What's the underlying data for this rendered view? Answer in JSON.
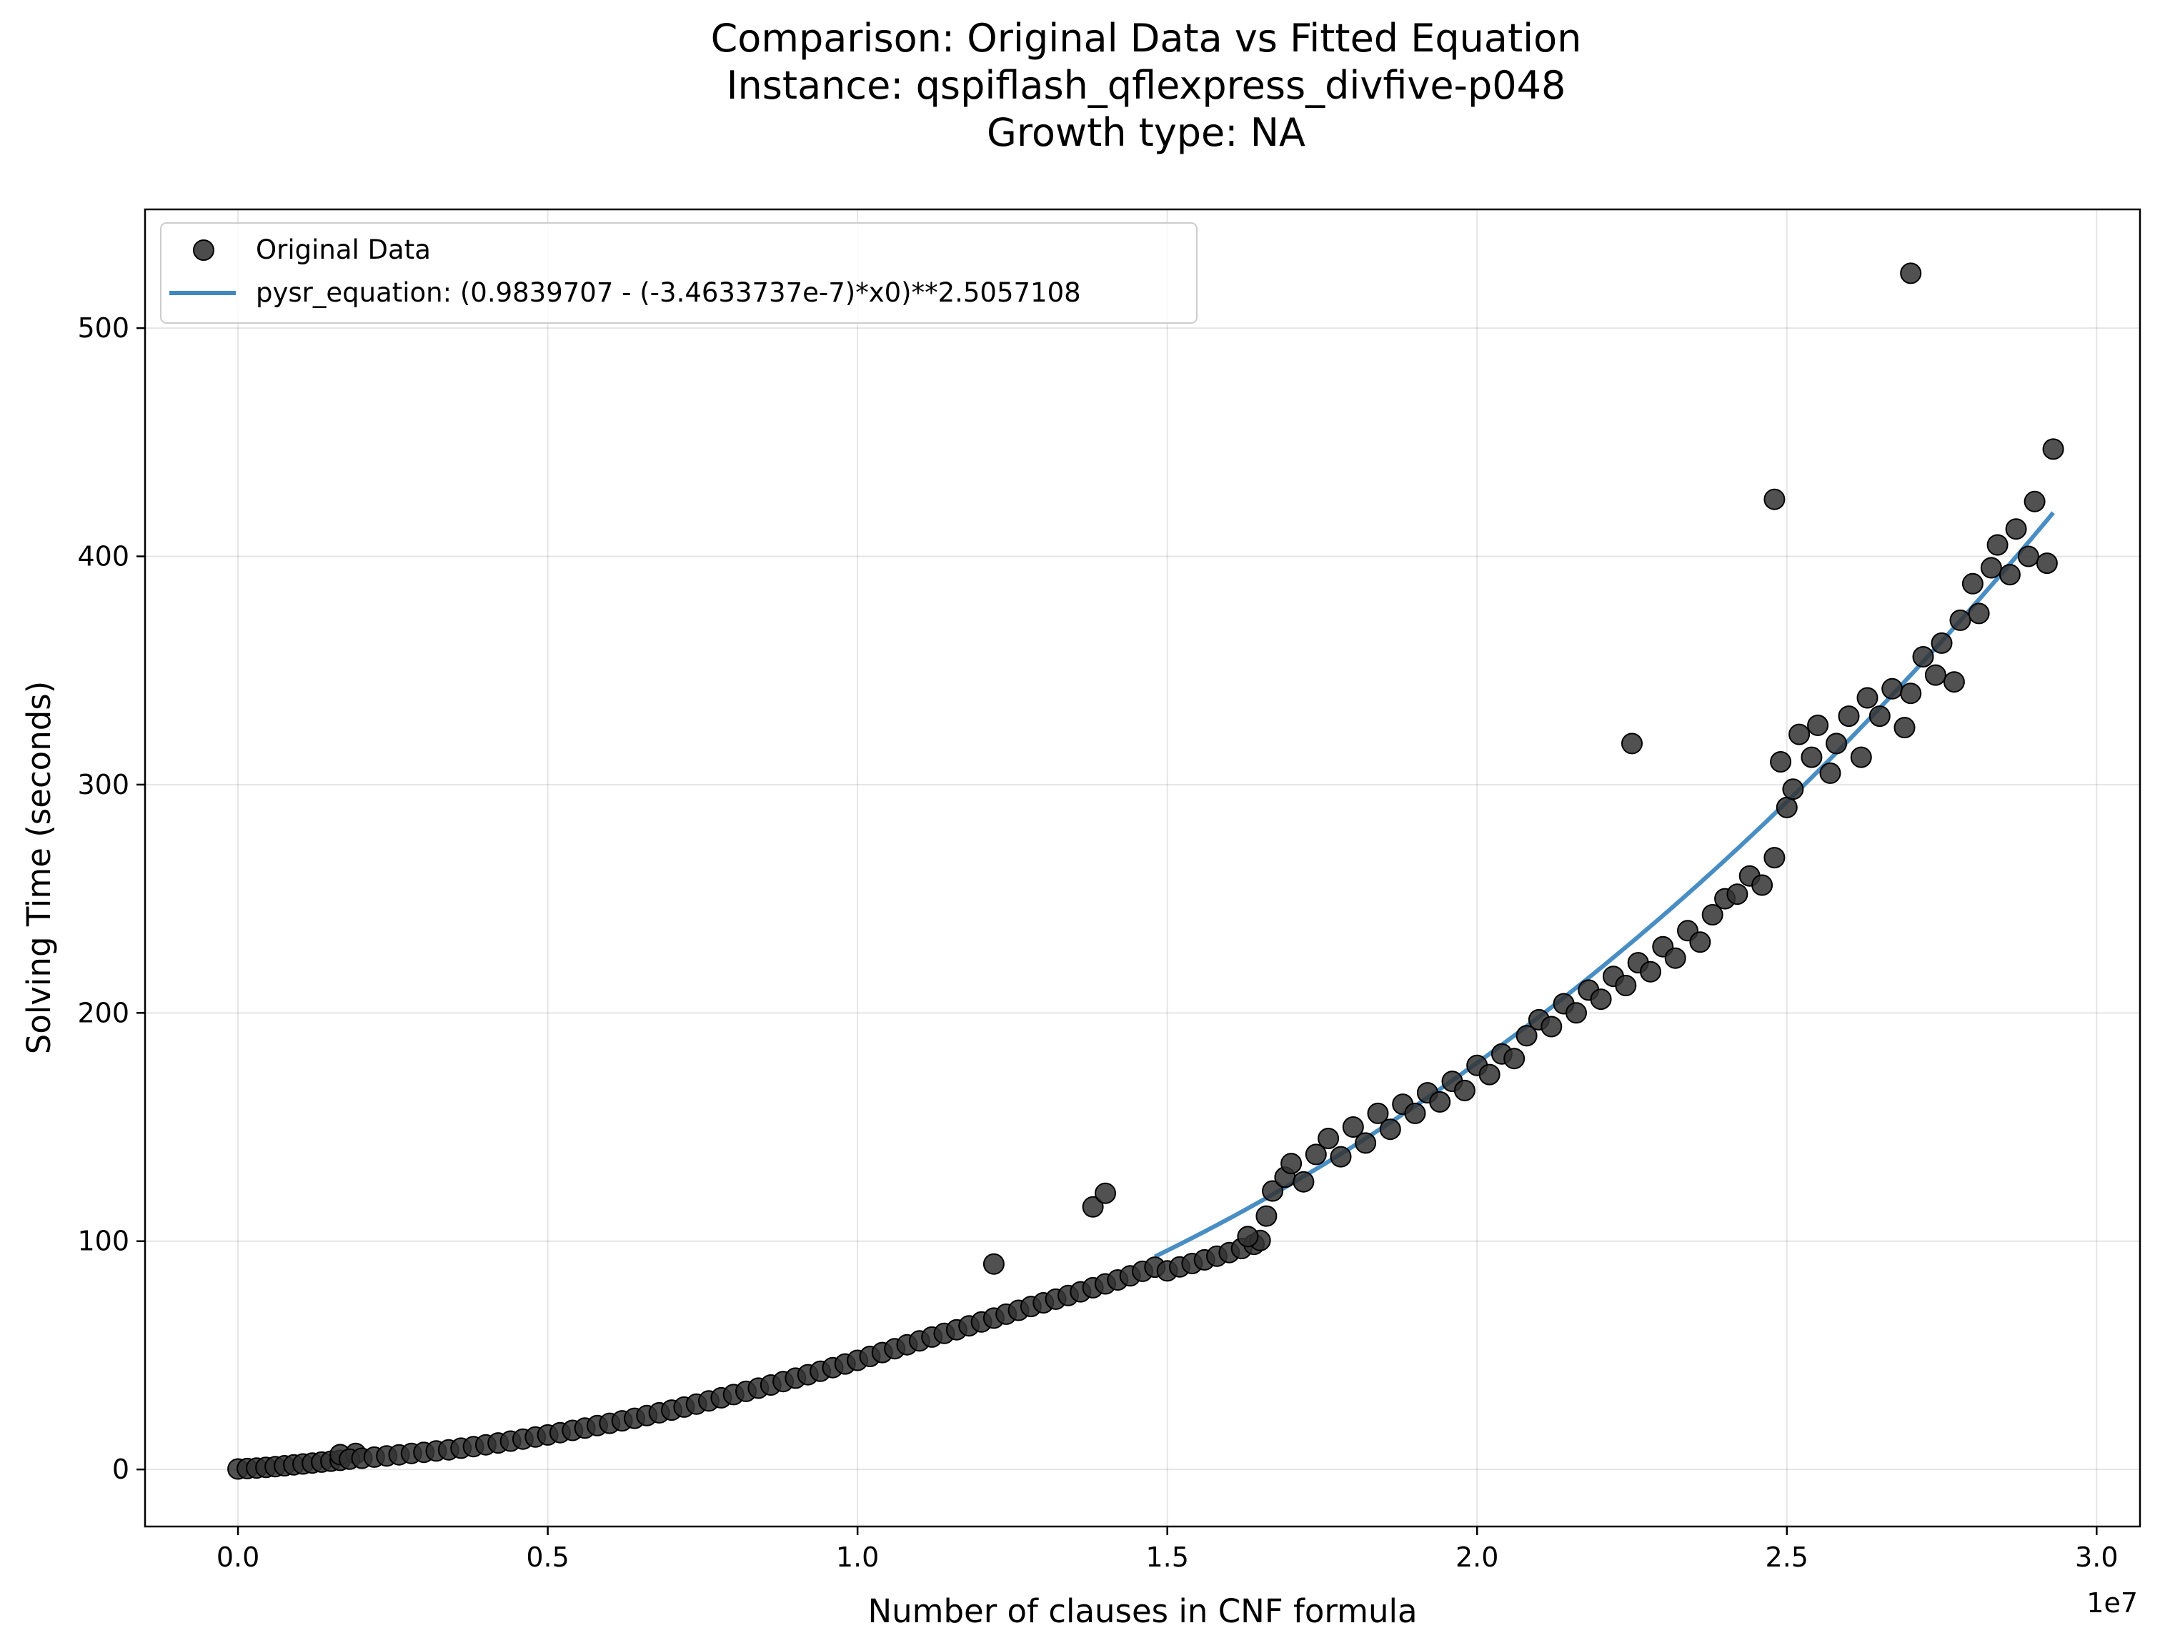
{
  "chart_data": {
    "type": "scatter",
    "title_lines": [
      "Comparison: Original Data vs Fitted Equation",
      "Instance: qspiflash_qflexpress_divfive-p048",
      "Growth type: NA"
    ],
    "xlabel": "Number of clauses in CNF formula",
    "ylabel": "Solving Time (seconds)",
    "x_offset_label": "1e7",
    "x_scale_factor": 10000000,
    "xlim": [
      -1500000,
      30700000
    ],
    "ylim": [
      -25,
      552
    ],
    "x_ticks": [
      0,
      5000000,
      10000000,
      15000000,
      20000000,
      25000000,
      30000000
    ],
    "x_tick_labels": [
      "0.0",
      "0.5",
      "1.0",
      "1.5",
      "2.0",
      "2.5",
      "3.0"
    ],
    "y_ticks": [
      0,
      100,
      200,
      300,
      400,
      500
    ],
    "y_tick_labels": [
      "0",
      "100",
      "200",
      "300",
      "400",
      "500"
    ],
    "grid": true,
    "legend_position": "upper-left",
    "legend": [
      {
        "label": "Original Data",
        "marker": "circle",
        "color": "#333333"
      },
      {
        "label": "pysr_equation: (0.9839707 - (-3.4633737e-7)*x0)**2.5057108",
        "marker": "line",
        "color": "#3f88c0"
      }
    ],
    "series": [
      {
        "name": "Original Data",
        "kind": "scatter",
        "color": "#333333",
        "points": [
          [
            0,
            0.2
          ],
          [
            150000,
            0.4
          ],
          [
            300000,
            0.6
          ],
          [
            450000,
            0.9
          ],
          [
            600000,
            1.2
          ],
          [
            750000,
            1.6
          ],
          [
            900000,
            2.0
          ],
          [
            1050000,
            2.4
          ],
          [
            1200000,
            2.8
          ],
          [
            1350000,
            3.2
          ],
          [
            1500000,
            3.6
          ],
          [
            1650000,
            4.0
          ],
          [
            1650000,
            6.5
          ],
          [
            1900000,
            7.0
          ],
          [
            1800000,
            4.5
          ],
          [
            2000000,
            4.9
          ],
          [
            2200000,
            5.4
          ],
          [
            2400000,
            5.9
          ],
          [
            2600000,
            6.4
          ],
          [
            2800000,
            7.0
          ],
          [
            3000000,
            7.5
          ],
          [
            3200000,
            8.1
          ],
          [
            3400000,
            8.6
          ],
          [
            3600000,
            9.3
          ],
          [
            3800000,
            10.0
          ],
          [
            4000000,
            10.8
          ],
          [
            4200000,
            11.6
          ],
          [
            4400000,
            12.4
          ],
          [
            4600000,
            13.3
          ],
          [
            4800000,
            14.2
          ],
          [
            5000000,
            15.1
          ],
          [
            5200000,
            16.1
          ],
          [
            5400000,
            17.1
          ],
          [
            5600000,
            18.1
          ],
          [
            5800000,
            19.2
          ],
          [
            6000000,
            20.2
          ],
          [
            6200000,
            21.3
          ],
          [
            6400000,
            22.4
          ],
          [
            6600000,
            23.6
          ],
          [
            6800000,
            24.8
          ],
          [
            7000000,
            26.0
          ],
          [
            7200000,
            27.3
          ],
          [
            7400000,
            28.6
          ],
          [
            7600000,
            30.0
          ],
          [
            7800000,
            31.4
          ],
          [
            8000000,
            32.8
          ],
          [
            8200000,
            34.2
          ],
          [
            8400000,
            35.6
          ],
          [
            8600000,
            37.0
          ],
          [
            8800000,
            38.5
          ],
          [
            9000000,
            40.0
          ],
          [
            9200000,
            41.5
          ],
          [
            9400000,
            43.0
          ],
          [
            9600000,
            44.6
          ],
          [
            9800000,
            46.2
          ],
          [
            10000000,
            47.8
          ],
          [
            10200000,
            49.5
          ],
          [
            10400000,
            51.2
          ],
          [
            10600000,
            52.9
          ],
          [
            10800000,
            54.6
          ],
          [
            11000000,
            56.3
          ],
          [
            11200000,
            58.0
          ],
          [
            11400000,
            59.6
          ],
          [
            11600000,
            61.2
          ],
          [
            11800000,
            62.9
          ],
          [
            12000000,
            64.6
          ],
          [
            12200000,
            66.3
          ],
          [
            12400000,
            68.0
          ],
          [
            12600000,
            69.7
          ],
          [
            12800000,
            71.4
          ],
          [
            13000000,
            73.0
          ],
          [
            13200000,
            74.6
          ],
          [
            13400000,
            76.2
          ],
          [
            13600000,
            77.8
          ],
          [
            13800000,
            79.6
          ],
          [
            14000000,
            81.3
          ],
          [
            14200000,
            83.0
          ],
          [
            14400000,
            84.8
          ],
          [
            14600000,
            86.8
          ],
          [
            14800000,
            88.6
          ],
          [
            15000000,
            87.0
          ],
          [
            15200000,
            88.7
          ],
          [
            15400000,
            90.2
          ],
          [
            15600000,
            91.8
          ],
          [
            15800000,
            93.4
          ],
          [
            16000000,
            95.0
          ],
          [
            16200000,
            96.8
          ],
          [
            16400000,
            98.6
          ],
          [
            16500000,
            100.3
          ],
          [
            16300000,
            102.0
          ],
          [
            12200000,
            90
          ],
          [
            13800000,
            115
          ],
          [
            14000000,
            121
          ],
          [
            16600000,
            111
          ],
          [
            16700000,
            122
          ],
          [
            16900000,
            128
          ],
          [
            17000000,
            134
          ],
          [
            17200000,
            126
          ],
          [
            17400000,
            138
          ],
          [
            17600000,
            145
          ],
          [
            17800000,
            137
          ],
          [
            18000000,
            150
          ],
          [
            18200000,
            143
          ],
          [
            18400000,
            156
          ],
          [
            18600000,
            149
          ],
          [
            18800000,
            160
          ],
          [
            19000000,
            156
          ],
          [
            19200000,
            165
          ],
          [
            19400000,
            161
          ],
          [
            19600000,
            170
          ],
          [
            19800000,
            166
          ],
          [
            20000000,
            177
          ],
          [
            20200000,
            173
          ],
          [
            20400000,
            182
          ],
          [
            20600000,
            180
          ],
          [
            20800000,
            190
          ],
          [
            21000000,
            197
          ],
          [
            21200000,
            194
          ],
          [
            21400000,
            204
          ],
          [
            21600000,
            200
          ],
          [
            21800000,
            210
          ],
          [
            22000000,
            206
          ],
          [
            22200000,
            216
          ],
          [
            22400000,
            212
          ],
          [
            22600000,
            222
          ],
          [
            22800000,
            218
          ],
          [
            23000000,
            229
          ],
          [
            23200000,
            224
          ],
          [
            23400000,
            236
          ],
          [
            23600000,
            231
          ],
          [
            23800000,
            243
          ],
          [
            24000000,
            250
          ],
          [
            24200000,
            252
          ],
          [
            24400000,
            260
          ],
          [
            24600000,
            256
          ],
          [
            24800000,
            268
          ],
          [
            22500000,
            318
          ],
          [
            24800000,
            425
          ],
          [
            24900000,
            310
          ],
          [
            25000000,
            290
          ],
          [
            25100000,
            298
          ],
          [
            25200000,
            322
          ],
          [
            25400000,
            312
          ],
          [
            25500000,
            326
          ],
          [
            25700000,
            305
          ],
          [
            25800000,
            318
          ],
          [
            26000000,
            330
          ],
          [
            26200000,
            312
          ],
          [
            26300000,
            338
          ],
          [
            26500000,
            330
          ],
          [
            26700000,
            342
          ],
          [
            26900000,
            325
          ],
          [
            27000000,
            340
          ],
          [
            27000000,
            524
          ],
          [
            27200000,
            356
          ],
          [
            27400000,
            348
          ],
          [
            27500000,
            362
          ],
          [
            27700000,
            345
          ],
          [
            27800000,
            372
          ],
          [
            28000000,
            388
          ],
          [
            28100000,
            375
          ],
          [
            28300000,
            395
          ],
          [
            28400000,
            405
          ],
          [
            28600000,
            392
          ],
          [
            28700000,
            412
          ],
          [
            28900000,
            400
          ],
          [
            29000000,
            424
          ],
          [
            29200000,
            397
          ],
          [
            29300000,
            447
          ]
        ]
      },
      {
        "name": "pysr_equation: (0.9839707 - (-3.4633737e-7)*x0)**2.5057108",
        "kind": "line",
        "color": "#3f88c0",
        "equation": {
          "a": 0.9839707,
          "b": 3.4633737e-07,
          "p": 2.5057108
        },
        "x_range": [
          14800000,
          29300000
        ]
      }
    ]
  }
}
